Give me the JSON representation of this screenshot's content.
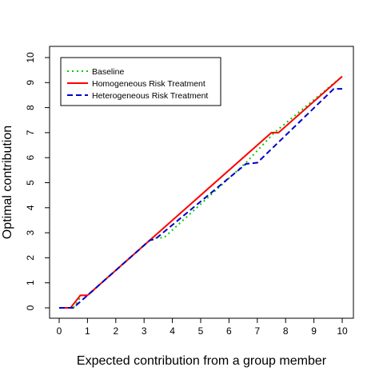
{
  "chart_data": {
    "type": "line",
    "title": "",
    "xlabel": "Expected contribution from a group member",
    "ylabel": "Optimal contribution",
    "xlim": [
      0,
      10
    ],
    "ylim": [
      0,
      10
    ],
    "x_ticks": [
      "0",
      "1",
      "2",
      "3",
      "4",
      "5",
      "6",
      "7",
      "8",
      "9",
      "10"
    ],
    "y_ticks": [
      "0",
      "1",
      "2",
      "3",
      "4",
      "5",
      "6",
      "7",
      "8",
      "9",
      "10"
    ],
    "grid": false,
    "legend_position": "top-left",
    "series": [
      {
        "name": "Baseline",
        "color": "#00cc00",
        "dash": "dotted",
        "x": [
          0,
          0.5,
          0.8,
          1,
          3.3,
          3.7,
          6.6,
          7.6,
          10
        ],
        "y": [
          0,
          0,
          0.5,
          0.5,
          2.8,
          2.8,
          5.8,
          7.0,
          9.25
        ]
      },
      {
        "name": "Homogeneous Risk Treatment",
        "color": "#ff0000",
        "dash": "solid",
        "x": [
          0,
          0.4,
          0.75,
          1,
          7.5,
          7.75,
          10
        ],
        "y": [
          0,
          0,
          0.5,
          0.5,
          7.0,
          7.0,
          9.25
        ]
      },
      {
        "name": "Heterogeneous Risk Treatment",
        "color": "#0000cc",
        "dash": "dashed",
        "x": [
          0,
          0.5,
          1,
          3.2,
          3.4,
          6.6,
          7.0,
          9.7,
          10
        ],
        "y": [
          0,
          0,
          0.5,
          2.7,
          2.75,
          5.75,
          5.8,
          8.75,
          8.75
        ]
      }
    ]
  }
}
